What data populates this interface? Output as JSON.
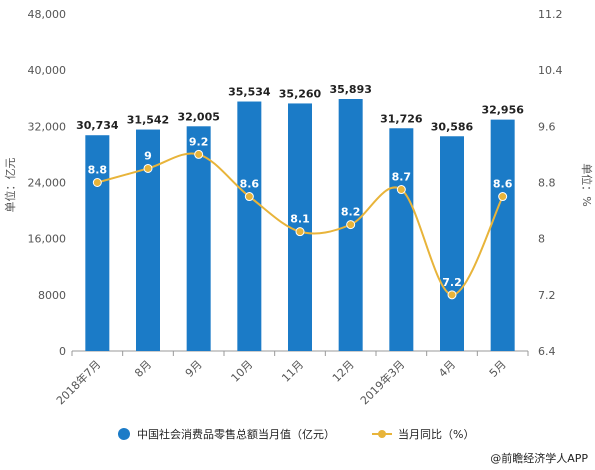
{
  "chart_data": {
    "type": "bar",
    "categories": [
      "2018年7月",
      "8月",
      "9月",
      "10月",
      "11月",
      "12月",
      "2019年3月",
      "4月",
      "5月"
    ],
    "series": [
      {
        "name": "中国社会消费品零售总额当月值（亿元）",
        "type": "bar",
        "axis": "left",
        "values": [
          30734,
          31542,
          32005,
          35534,
          35260,
          35893,
          31726,
          30586,
          32956
        ],
        "labels": [
          "30,734",
          "31,542",
          "32,005",
          "35,534",
          "35,260",
          "35,893",
          "31,726",
          "30,586",
          "32,956"
        ]
      },
      {
        "name": "当月同比（%）",
        "type": "line",
        "axis": "right",
        "values": [
          8.8,
          9,
          9.2,
          8.6,
          8.1,
          8.2,
          8.7,
          7.2,
          8.6
        ],
        "labels": [
          "8.8",
          "9",
          "9.2",
          "8.6",
          "8.1",
          "8.2",
          "8.7",
          "7.2",
          "8.6"
        ]
      }
    ],
    "y_left": {
      "label": "单位：亿元",
      "range": [
        0,
        48000
      ],
      "ticks": [
        "0",
        "8000",
        "16,000",
        "24,000",
        "32,000",
        "40,000",
        "48,000"
      ],
      "tick_values": [
        0,
        8000,
        16000,
        24000,
        32000,
        40000,
        48000
      ]
    },
    "y_right": {
      "label": "单位：%",
      "range": [
        6.4,
        11.2
      ],
      "ticks": [
        "6.4",
        "7.2",
        "8",
        "8.8",
        "9.6",
        "10.4",
        "11.2"
      ],
      "tick_values": [
        6.4,
        7.2,
        8,
        8.8,
        9.6,
        10.4,
        11.2
      ]
    },
    "grid": false,
    "legend": "bottom",
    "colors": {
      "bar": "#1b7bc7",
      "line": "#e8b43a"
    }
  },
  "credit": "@前瞻经济学人APP"
}
